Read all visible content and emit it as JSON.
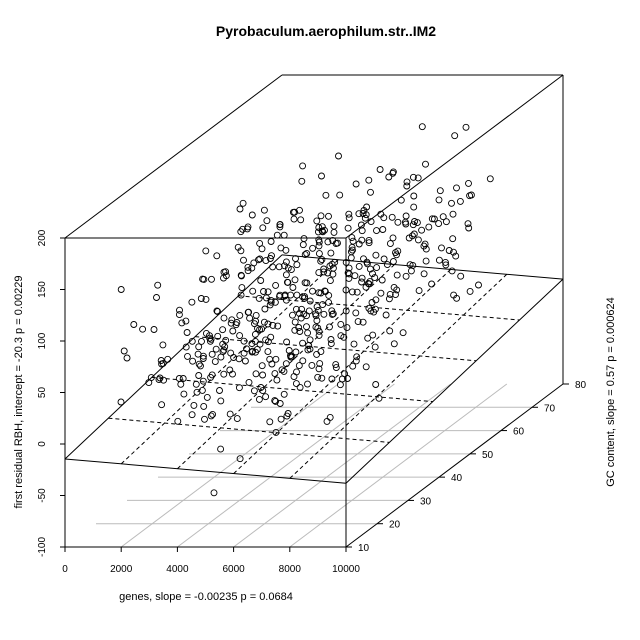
{
  "chart_data": {
    "type": "scatter",
    "title": "Pyrobaculum.aerophilum.str..IM2",
    "xlabel": "genes, slope =  -0.00235 p =  0.0684",
    "ylabel": "GC content, slope =  0.57 p =  0.000624",
    "zlabel": "first residual RBH, intercept =  -20.3 p =  0.00229",
    "xlim": [
      0,
      10000
    ],
    "ylim": [
      10,
      80
    ],
    "zlim": [
      -100,
      200
    ],
    "x_ticks": [
      "0",
      "2000",
      "4000",
      "6000",
      "8000",
      "10000"
    ],
    "y_ticks": [
      "10",
      "20",
      "30",
      "40",
      "50",
      "60",
      "70",
      "80"
    ],
    "z_ticks": [
      "-100",
      "-50",
      "0",
      "50",
      "100",
      "150",
      "200"
    ],
    "fitted_plane": {
      "intercept": -20.3,
      "slope_genes": -0.00235,
      "slope_gc": 0.57
    },
    "grid": true,
    "marker": "open circle"
  }
}
